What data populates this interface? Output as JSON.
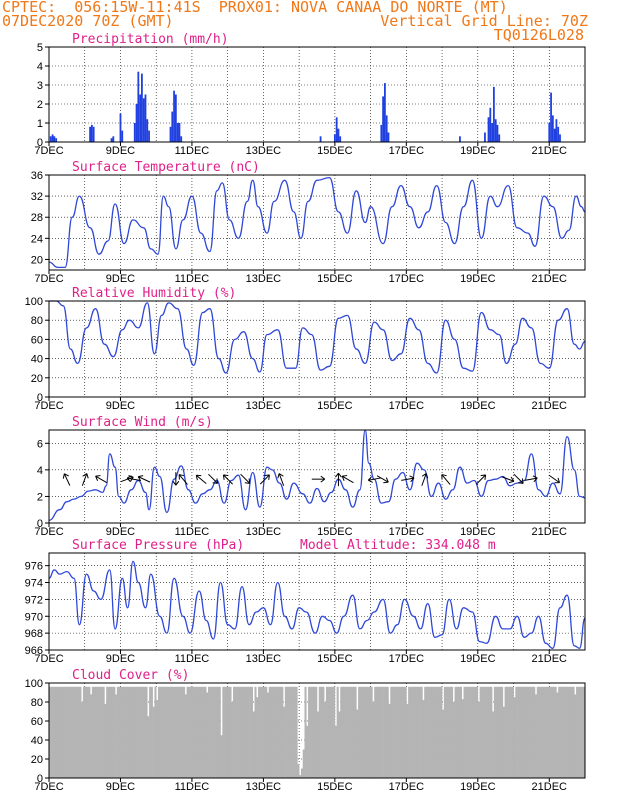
{
  "header": {
    "line1_left": "CPTEC:  056:15W-11:41S  PROX01: NOVA CANAA DO NORTE (MT)",
    "line2_left": "07DEC2020 70Z (GMT)",
    "line2_right": "Vertical Grid Line: 70Z",
    "line3_right": "TQ0126L028"
  },
  "colors": {
    "header": "#f07818",
    "title": "#e0208a",
    "line": "#3048d8",
    "bar": "#2040e0",
    "cloud": "#b4b4b4"
  },
  "chart_data": [
    {
      "type": "bar",
      "title": "Precipitation (mm/h)",
      "ylim": [
        0,
        5
      ],
      "yticks": [
        0,
        1,
        2,
        3,
        4,
        5
      ],
      "x_tick_labels": [
        "7DEC",
        "9DEC",
        "11DEC",
        "13DEC",
        "15DEC",
        "17DEC",
        "19DEC",
        "21DEC"
      ],
      "x_tick_days": [
        0,
        2,
        4,
        6,
        8,
        10,
        12,
        14
      ],
      "x_range_days": [
        0,
        15
      ],
      "x": [
        0.05,
        0.1,
        0.15,
        0.2,
        1.15,
        1.2,
        1.25,
        1.75,
        1.8,
        2.0,
        2.05,
        2.4,
        2.45,
        2.5,
        2.55,
        2.6,
        2.65,
        2.7,
        2.75,
        2.8,
        3.4,
        3.45,
        3.5,
        3.55,
        3.6,
        3.65,
        3.7,
        7.6,
        8.0,
        8.05,
        8.1,
        8.15,
        9.3,
        9.35,
        9.4,
        9.45,
        9.5,
        11.5,
        12.2,
        12.3,
        12.35,
        12.4,
        12.45,
        12.5,
        12.55,
        12.6,
        14.0,
        14.05,
        14.1,
        14.15,
        14.2,
        14.25,
        14.3
      ],
      "values": [
        0.3,
        0.4,
        0.3,
        0.2,
        0.8,
        0.9,
        0.8,
        0.2,
        0.3,
        1.5,
        0.6,
        1.0,
        2.0,
        3.7,
        2.5,
        3.6,
        2.3,
        2.5,
        1.2,
        0.6,
        0.8,
        1.6,
        2.7,
        2.5,
        1.0,
        1.0,
        0.3,
        0.3,
        0.4,
        1.3,
        0.7,
        0.3,
        0.9,
        2.4,
        3.1,
        1.4,
        0.5,
        0.3,
        0.5,
        1.3,
        1.8,
        1.0,
        2.9,
        1.2,
        0.9,
        0.4,
        1.0,
        2.6,
        1.4,
        0.7,
        1.2,
        0.8,
        0.4
      ]
    },
    {
      "type": "line",
      "title": "Surface Temperature (nC)",
      "ylim": [
        18,
        36
      ],
      "yticks": [
        20,
        24,
        28,
        32,
        36
      ],
      "x_tick_labels": [
        "7DEC",
        "9DEC",
        "11DEC",
        "13DEC",
        "15DEC",
        "17DEC",
        "19DEC",
        "21DEC"
      ],
      "x_range_days": [
        0,
        15
      ],
      "x": [
        0,
        0.25,
        0.45,
        0.65,
        0.85,
        1.15,
        1.4,
        1.65,
        1.85,
        2.1,
        2.35,
        2.65,
        2.85,
        3.05,
        3.2,
        3.35,
        3.55,
        3.75,
        4.0,
        4.25,
        4.5,
        4.7,
        4.85,
        5.05,
        5.3,
        5.55,
        5.7,
        5.85,
        6.1,
        6.3,
        6.6,
        6.85,
        7.05,
        7.25,
        7.5,
        7.85,
        8.1,
        8.35,
        8.6,
        8.85,
        9.0,
        9.35,
        9.6,
        9.85,
        10.1,
        10.35,
        10.6,
        10.85,
        11.1,
        11.35,
        11.6,
        11.85,
        12.1,
        12.35,
        12.55,
        12.85,
        13.1,
        13.4,
        13.6,
        13.85,
        14.1,
        14.35,
        14.55,
        14.75,
        14.9,
        15
      ],
      "values": [
        19.5,
        18.5,
        18.5,
        28,
        32,
        26,
        21,
        23.5,
        30.5,
        23,
        27.5,
        26,
        22,
        21,
        32,
        30,
        22,
        27.5,
        32,
        25,
        21.5,
        33,
        34.5,
        27.5,
        24,
        31,
        35,
        30,
        25,
        31,
        35,
        29,
        24,
        31,
        35,
        35.5,
        29,
        25,
        33,
        27,
        30,
        23,
        30,
        34,
        30,
        26,
        29,
        34,
        27,
        23,
        30,
        35,
        24,
        32,
        30,
        34,
        26,
        25,
        22.5,
        32,
        30,
        24,
        25.5,
        32,
        30,
        29
      ]
    },
    {
      "type": "line",
      "title": "Relative Humidity (%)",
      "ylim": [
        0,
        100
      ],
      "yticks": [
        0,
        20,
        40,
        60,
        80,
        100
      ],
      "x_tick_labels": [
        "7DEC",
        "9DEC",
        "11DEC",
        "13DEC",
        "15DEC",
        "17DEC",
        "19DEC",
        "21DEC"
      ],
      "x_range_days": [
        0,
        15
      ],
      "x": [
        0,
        0.2,
        0.4,
        0.6,
        0.8,
        1.05,
        1.3,
        1.55,
        1.8,
        2.05,
        2.25,
        2.5,
        2.75,
        2.95,
        3.15,
        3.35,
        3.6,
        3.85,
        4.05,
        4.3,
        4.5,
        4.75,
        4.95,
        5.2,
        5.45,
        5.7,
        5.9,
        6.1,
        6.4,
        6.65,
        6.9,
        7.1,
        7.35,
        7.6,
        7.85,
        8.1,
        8.35,
        8.6,
        8.85,
        9.1,
        9.35,
        9.6,
        9.85,
        10.1,
        10.35,
        10.6,
        10.85,
        11.1,
        11.35,
        11.6,
        11.85,
        12.1,
        12.35,
        12.6,
        12.8,
        13.05,
        13.25,
        13.5,
        13.75,
        14.0,
        14.25,
        14.5,
        14.7,
        14.85,
        15
      ],
      "values": [
        100,
        100,
        95,
        50,
        35,
        72,
        92,
        55,
        42,
        70,
        80,
        72,
        98,
        45,
        85,
        98,
        92,
        50,
        33,
        88,
        92,
        40,
        25,
        60,
        68,
        40,
        26,
        65,
        70,
        30,
        30,
        72,
        65,
        28,
        32,
        82,
        85,
        50,
        35,
        78,
        70,
        38,
        45,
        82,
        70,
        35,
        25,
        80,
        60,
        30,
        27,
        88,
        70,
        65,
        35,
        55,
        82,
        72,
        35,
        30,
        80,
        92,
        55,
        50,
        58
      ]
    },
    {
      "type": "line",
      "title": "Surface Wind (m/s)",
      "ylim": [
        0,
        7
      ],
      "yticks": [
        0,
        2,
        4,
        6
      ],
      "x_tick_labels": [
        "7DEC",
        "9DEC",
        "11DEC",
        "13DEC",
        "15DEC",
        "17DEC",
        "19DEC",
        "21DEC"
      ],
      "x_range_days": [
        0,
        15
      ],
      "x": [
        0,
        0.3,
        0.5,
        0.7,
        0.9,
        1.1,
        1.3,
        1.5,
        1.6,
        1.7,
        1.85,
        1.95,
        2.1,
        2.3,
        2.5,
        2.7,
        2.8,
        2.95,
        3.1,
        3.3,
        3.5,
        3.7,
        3.9,
        4.1,
        4.3,
        4.5,
        4.7,
        4.9,
        5.1,
        5.3,
        5.5,
        5.7,
        5.9,
        6.1,
        6.25,
        6.45,
        6.65,
        6.85,
        7.1,
        7.3,
        7.5,
        7.7,
        7.9,
        8.1,
        8.3,
        8.5,
        8.7,
        8.85,
        8.95,
        9.1,
        9.3,
        9.5,
        9.7,
        9.9,
        10.1,
        10.3,
        10.5,
        10.7,
        10.9,
        11.1,
        11.3,
        11.5,
        11.7,
        11.9,
        12.1,
        12.3,
        12.5,
        12.7,
        12.9,
        13.1,
        13.3,
        13.5,
        13.7,
        13.9,
        14.1,
        14.3,
        14.5,
        14.7,
        14.85,
        15
      ],
      "values": [
        0.2,
        1.0,
        1.6,
        1.8,
        2.0,
        2.4,
        2.5,
        2.3,
        2.8,
        5.2,
        4.2,
        2.0,
        1.5,
        2.5,
        3.2,
        2.3,
        1.0,
        4.2,
        3.5,
        0.8,
        3.3,
        4.3,
        2.5,
        1.5,
        2.2,
        2.5,
        3.2,
        1.5,
        3.2,
        3.6,
        1.0,
        3.8,
        1.2,
        4.2,
        4.0,
        3.0,
        1.8,
        3.0,
        2.2,
        1.5,
        2.6,
        1.6,
        2.3,
        3.3,
        2.5,
        1.2,
        2.5,
        7.0,
        4.5,
        3.3,
        1.5,
        1.6,
        3.3,
        3.8,
        2.5,
        4.5,
        4.0,
        2.0,
        3.0,
        1.8,
        2.5,
        4.2,
        3.0,
        3.2,
        2.0,
        3.2,
        3.3,
        3.5,
        2.8,
        3.0,
        3.2,
        5.2,
        2.5,
        2.0,
        3.0,
        2.2,
        6.5,
        4.0,
        2.0,
        1.9
      ],
      "arrows": [
        {
          "x": 0.5,
          "angle_deg": -115
        },
        {
          "x": 1.0,
          "angle_deg": -70
        },
        {
          "x": 1.45,
          "angle_deg": -150
        },
        {
          "x": 2.2,
          "angle_deg": -20
        },
        {
          "x": 2.35,
          "angle_deg": -170
        },
        {
          "x": 2.65,
          "angle_deg": -155
        },
        {
          "x": 3.55,
          "angle_deg": 90
        },
        {
          "x": 3.75,
          "angle_deg": -130
        },
        {
          "x": 4.25,
          "angle_deg": -140
        },
        {
          "x": 4.6,
          "angle_deg": 45
        },
        {
          "x": 5.0,
          "angle_deg": -135
        },
        {
          "x": 5.5,
          "angle_deg": 45
        },
        {
          "x": 6.05,
          "angle_deg": -45
        },
        {
          "x": 6.5,
          "angle_deg": -110
        },
        {
          "x": 7.55,
          "angle_deg": 0
        },
        {
          "x": 8.1,
          "angle_deg": -90
        },
        {
          "x": 8.35,
          "angle_deg": -150
        },
        {
          "x": 9.1,
          "angle_deg": 170
        },
        {
          "x": 9.35,
          "angle_deg": 30
        },
        {
          "x": 10.05,
          "angle_deg": -10
        },
        {
          "x": 10.5,
          "angle_deg": -70
        },
        {
          "x": 11.1,
          "angle_deg": -130
        },
        {
          "x": 12.1,
          "angle_deg": -45
        },
        {
          "x": 12.85,
          "angle_deg": 20
        },
        {
          "x": 13.15,
          "angle_deg": 45
        },
        {
          "x": 13.5,
          "angle_deg": -10
        },
        {
          "x": 14.15,
          "angle_deg": 35
        }
      ]
    },
    {
      "type": "line",
      "title": "Surface Pressure (hPa)",
      "annotation": "Model Altitude: 334.048 m",
      "ylim": [
        966,
        977.5
      ],
      "yticks": [
        966,
        968,
        970,
        972,
        974,
        976
      ],
      "x_tick_labels": [
        "7DEC",
        "9DEC",
        "11DEC",
        "13DEC",
        "15DEC",
        "17DEC",
        "19DEC",
        "21DEC"
      ],
      "x_range_days": [
        0,
        15
      ],
      "x": [
        0,
        0.15,
        0.3,
        0.5,
        0.7,
        0.85,
        1.05,
        1.25,
        1.45,
        1.7,
        1.85,
        2.05,
        2.2,
        2.35,
        2.5,
        2.7,
        2.85,
        3.1,
        3.3,
        3.5,
        3.75,
        3.95,
        4.2,
        4.4,
        4.6,
        4.8,
        5.0,
        5.2,
        5.4,
        5.6,
        5.8,
        6.0,
        6.2,
        6.4,
        6.6,
        6.8,
        7.0,
        7.2,
        7.45,
        7.65,
        7.85,
        8.05,
        8.25,
        8.5,
        8.7,
        8.9,
        9.1,
        9.35,
        9.55,
        9.75,
        9.95,
        10.2,
        10.4,
        10.6,
        10.8,
        11.0,
        11.2,
        11.4,
        11.6,
        11.85,
        12.05,
        12.25,
        12.5,
        12.7,
        12.9,
        13.1,
        13.3,
        13.5,
        13.7,
        13.9,
        14.1,
        14.3,
        14.5,
        14.7,
        14.85,
        15
      ],
      "values": [
        974.5,
        975.5,
        975,
        975.3,
        974.5,
        969,
        975,
        973,
        972,
        975.5,
        968.5,
        974.5,
        971,
        976.5,
        974,
        971,
        975,
        970,
        968,
        974.5,
        970,
        968,
        973,
        969.5,
        967.3,
        974,
        969,
        968.5,
        973.5,
        969,
        970.5,
        971,
        969,
        974,
        970,
        968.5,
        971,
        970.5,
        968,
        970,
        969.5,
        968,
        970,
        972.5,
        968.5,
        969.5,
        970.5,
        972,
        968,
        969,
        972,
        970,
        968.5,
        971.5,
        967.5,
        967.8,
        972,
        968.5,
        971,
        970.5,
        967,
        966.8,
        970,
        968.5,
        968.5,
        970,
        967.5,
        968,
        970,
        966.8,
        966.2,
        971,
        972.5,
        966.5,
        966.2,
        969.8
      ]
    },
    {
      "type": "bar",
      "title": "Cloud Cover (%)",
      "ylim": [
        0,
        100
      ],
      "yticks": [
        0,
        20,
        40,
        60,
        80,
        100
      ],
      "x_tick_labels": [
        "7DEC",
        "9DEC",
        "11DEC",
        "13DEC",
        "15DEC",
        "17DEC",
        "19DEC",
        "21DEC"
      ],
      "x_range_days": [
        0,
        15
      ],
      "base_value": 96,
      "dips": [
        {
          "x": 0.9,
          "value": 80
        },
        {
          "x": 1.15,
          "value": 88
        },
        {
          "x": 1.55,
          "value": 78
        },
        {
          "x": 1.85,
          "value": 88
        },
        {
          "x": 2.75,
          "value": 65
        },
        {
          "x": 2.9,
          "value": 75
        },
        {
          "x": 3.0,
          "value": 82
        },
        {
          "x": 3.8,
          "value": 88
        },
        {
          "x": 4.4,
          "value": 90
        },
        {
          "x": 4.8,
          "value": 45
        },
        {
          "x": 5.1,
          "value": 80
        },
        {
          "x": 5.7,
          "value": 70
        },
        {
          "x": 5.8,
          "value": 85
        },
        {
          "x": 6.1,
          "value": 90
        },
        {
          "x": 6.55,
          "value": 75
        },
        {
          "x": 6.95,
          "value": 15
        },
        {
          "x": 7.0,
          "value": 3
        },
        {
          "x": 7.05,
          "value": 10
        },
        {
          "x": 7.1,
          "value": 30
        },
        {
          "x": 7.2,
          "value": 55
        },
        {
          "x": 7.5,
          "value": 70
        },
        {
          "x": 7.7,
          "value": 80
        },
        {
          "x": 8.0,
          "value": 55
        },
        {
          "x": 8.1,
          "value": 70
        },
        {
          "x": 8.6,
          "value": 72
        },
        {
          "x": 9.05,
          "value": 80
        },
        {
          "x": 9.5,
          "value": 78
        },
        {
          "x": 10.0,
          "value": 78
        },
        {
          "x": 10.45,
          "value": 82
        },
        {
          "x": 11.0,
          "value": 72
        },
        {
          "x": 11.3,
          "value": 80
        },
        {
          "x": 11.55,
          "value": 83
        },
        {
          "x": 12.0,
          "value": 80
        },
        {
          "x": 12.4,
          "value": 70
        },
        {
          "x": 12.7,
          "value": 75
        },
        {
          "x": 13.0,
          "value": 85
        },
        {
          "x": 13.6,
          "value": 88
        },
        {
          "x": 14.2,
          "value": 90
        },
        {
          "x": 14.7,
          "value": 88
        }
      ]
    }
  ]
}
